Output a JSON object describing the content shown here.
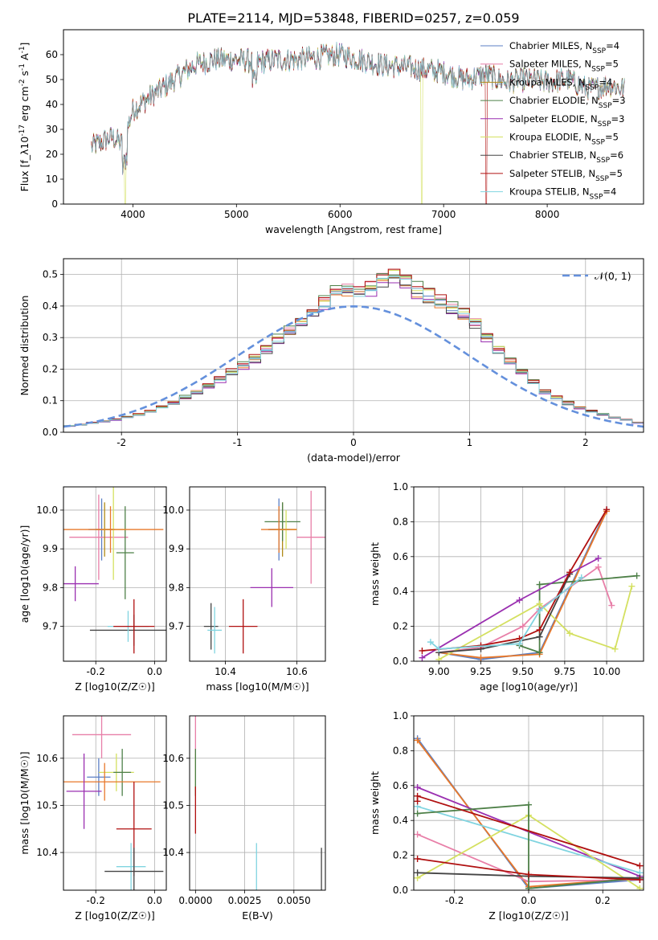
{
  "figure_title": "PLATE=2114, MJD=53848, FIBERID=0257, z=0.059",
  "colors": {
    "Chabrier MILES": "#5b7fc4",
    "Salpeter MILES": "#e87fa8",
    "Kroupa MILES": "#b08a18",
    "Chabrier ELODIE": "#4e8048",
    "Salpeter ELODIE": "#9a2fb0",
    "Kroupa ELODIE": "#d4e060",
    "Chabrier STELIB": "#444444",
    "Salpeter STELIB": "#b01010",
    "Kroupa STELIB": "#80d4e0",
    "ELODIE orange": "#e8782a",
    "gaussian": "#6490dc"
  },
  "chart_data": [
    {
      "id": "spectrum",
      "type": "line",
      "xlabel": "wavelength [Angstrom, rest frame]",
      "ylabel": "Flux [f_λ10^-17 erg cm^-2 s^-1 A^-1]",
      "xlim": [
        3330,
        8930
      ],
      "ylim": [
        0,
        70
      ],
      "xticks": [
        4000,
        5000,
        6000,
        7000,
        8000
      ],
      "yticks": [
        0,
        10,
        20,
        30,
        40,
        50,
        60
      ],
      "grid": false,
      "legend_position": "top-right",
      "legend": [
        "Chabrier MILES, N_SSP=4",
        "Salpeter MILES, N_SSP=5",
        "Kroupa MILES, N_SSP=4",
        "Chabrier ELODIE, N_SSP=3",
        "Salpeter ELODIE, N_SSP=3",
        "Kroupa ELODIE, N_SSP=5",
        "Chabrier STELIB, N_SSP=6",
        "Salpeter STELIB, N_SSP=5",
        "Kroupa STELIB, N_SSP=4"
      ],
      "continuum": {
        "x": [
          3600,
          3800,
          3900,
          4000,
          4200,
          4400,
          4600,
          4800,
          5000,
          5200,
          5400,
          5600,
          5800,
          6000,
          6200,
          6400,
          6600,
          6800,
          7000,
          7200,
          7400,
          7600,
          7800,
          8000,
          8200,
          8400,
          8600,
          8750
        ],
        "y": [
          23,
          27,
          24,
          38,
          44,
          50,
          56,
          58,
          58,
          57,
          58,
          58,
          59,
          60,
          58,
          56,
          55,
          54,
          53,
          50,
          52,
          49,
          50,
          49,
          50,
          46,
          48,
          46
        ]
      },
      "dropouts": [
        {
          "x": 3925,
          "y": 0,
          "series": "Kroupa ELODIE"
        },
        {
          "x": 6790,
          "y": 0,
          "series": "Kroupa ELODIE"
        },
        {
          "x": 7410,
          "y": 0,
          "series": "Salpeter STELIB"
        }
      ]
    },
    {
      "id": "residuals",
      "type": "bar",
      "xlabel": "(data-model)/error",
      "ylabel": "Normed distribution",
      "xlim": [
        -2.5,
        2.5
      ],
      "ylim": [
        0,
        0.55
      ],
      "xticks": [
        -2,
        -1,
        0,
        1,
        2
      ],
      "yticks": [
        0.0,
        0.1,
        0.2,
        0.3,
        0.4,
        0.5
      ],
      "grid": true,
      "legend_position": "top-right",
      "legend": [
        "𝒩(0, 1)"
      ],
      "bin_width": 0.1,
      "gaussian": {
        "mean": 0,
        "sigma": 1
      },
      "base_profile": [
        0.02,
        0.024,
        0.03,
        0.034,
        0.04,
        0.048,
        0.056,
        0.066,
        0.08,
        0.094,
        0.11,
        0.126,
        0.146,
        0.168,
        0.19,
        0.212,
        0.232,
        0.262,
        0.292,
        0.322,
        0.352,
        0.382,
        0.412,
        0.442,
        0.452,
        0.442,
        0.452,
        0.478,
        0.492,
        0.476,
        0.448,
        0.432,
        0.412,
        0.392,
        0.372,
        0.342,
        0.302,
        0.262,
        0.222,
        0.192,
        0.158,
        0.128,
        0.11,
        0.092,
        0.078,
        0.066,
        0.056,
        0.046,
        0.04,
        0.03
      ],
      "series_offsets": [
        0.0,
        0.012,
        -0.008,
        0.02,
        -0.018,
        0.008,
        -0.012,
        0.016,
        -0.004
      ]
    },
    {
      "id": "age_vs_Z",
      "type": "scatter",
      "xlabel": "Z [log10(Z/Z☉)]",
      "ylabel": "age  [log10(age/yr)]",
      "xlim": [
        -0.31,
        0.04
      ],
      "ylim": [
        9.61,
        10.06
      ],
      "xticks": [
        -0.2,
        0.0
      ],
      "yticks": [
        9.7,
        9.8,
        9.9,
        10.0
      ],
      "grid": true,
      "points": [
        {
          "series": "Chabrier MILES",
          "x": -0.18,
          "y": 9.95,
          "xerr": 0.045,
          "yerr": 0.08
        },
        {
          "series": "Salpeter MILES",
          "x": -0.19,
          "y": 9.93,
          "xerr": 0.1,
          "yerr": 0.11
        },
        {
          "series": "Kroupa MILES",
          "x": -0.17,
          "y": 9.95,
          "xerr": 0.03,
          "yerr": 0.07
        },
        {
          "series": "Chabrier ELODIE",
          "x": -0.1,
          "y": 9.89,
          "xerr": 0.03,
          "yerr": 0.12
        },
        {
          "series": "Salpeter ELODIE",
          "x": -0.27,
          "y": 9.81,
          "xerr": 0.08,
          "yerr": 0.045
        },
        {
          "series": "Kroupa ELODIE",
          "x": -0.14,
          "y": 9.95,
          "xerr": 0.04,
          "yerr": 0.13
        },
        {
          "series": "ELODIE orange",
          "x": -0.15,
          "y": 9.95,
          "xerr": 0.18,
          "yerr": 0.06
        },
        {
          "series": "Chabrier STELIB",
          "x": -0.07,
          "y": 9.69,
          "xerr": 0.15,
          "yerr": 0.04
        },
        {
          "series": "Kroupa STELIB",
          "x": -0.09,
          "y": 9.7,
          "xerr": 0.07,
          "yerr": 0.04
        },
        {
          "series": "Salpeter STELIB",
          "x": -0.07,
          "y": 9.7,
          "xerr": 0.07,
          "yerr": 0.07
        }
      ]
    },
    {
      "id": "age_vs_mass",
      "type": "scatter",
      "xlabel": "mass [log10(M/M☉)]",
      "ylabel": "",
      "xlim": [
        10.3,
        10.68
      ],
      "ylim": [
        9.61,
        10.06
      ],
      "xticks": [
        10.4,
        10.6
      ],
      "yticks": [
        9.7,
        9.8,
        9.9,
        10.0
      ],
      "grid": true,
      "points": [
        {
          "series": "Chabrier MILES",
          "x": 10.55,
          "y": 9.95,
          "xerr": 0.03,
          "yerr": 0.08
        },
        {
          "series": "Salpeter MILES",
          "x": 10.64,
          "y": 9.93,
          "xerr": 0.04,
          "yerr": 0.12
        },
        {
          "series": "Kroupa MILES",
          "x": 10.56,
          "y": 9.95,
          "xerr": 0.04,
          "yerr": 0.07
        },
        {
          "series": "Chabrier ELODIE",
          "x": 10.56,
          "y": 9.97,
          "xerr": 0.05,
          "yerr": 0.05
        },
        {
          "series": "Salpeter ELODIE",
          "x": 10.53,
          "y": 9.8,
          "xerr": 0.06,
          "yerr": 0.05
        },
        {
          "series": "Kroupa ELODIE",
          "x": 10.57,
          "y": 9.95,
          "xerr": 0.03,
          "yerr": 0.05
        },
        {
          "series": "ELODIE orange",
          "x": 10.55,
          "y": 9.95,
          "xerr": 0.05,
          "yerr": 0.06
        },
        {
          "series": "Chabrier STELIB",
          "x": 10.36,
          "y": 9.7,
          "xerr": 0.02,
          "yerr": 0.06
        },
        {
          "series": "Kroupa STELIB",
          "x": 10.37,
          "y": 9.69,
          "xerr": 0.02,
          "yerr": 0.06
        },
        {
          "series": "Salpeter STELIB",
          "x": 10.45,
          "y": 9.7,
          "xerr": 0.04,
          "yerr": 0.07
        }
      ]
    },
    {
      "id": "weight_vs_age",
      "type": "line",
      "xlabel": "age  [log10(age/yr)]",
      "ylabel": "mass weight",
      "xlim": [
        8.85,
        10.22
      ],
      "ylim": [
        0.0,
        1.0
      ],
      "xticks": [
        9.0,
        9.25,
        9.5,
        9.75,
        10.0
      ],
      "yticks": [
        0.0,
        0.2,
        0.4,
        0.6,
        0.8,
        1.0
      ],
      "grid": true,
      "series": [
        {
          "name": "Chabrier MILES",
          "x": [
            9.0,
            9.25,
            9.6,
            10.0
          ],
          "y": [
            0.05,
            0.01,
            0.05,
            0.87
          ]
        },
        {
          "name": "Salpeter MILES",
          "x": [
            9.0,
            9.25,
            9.5,
            9.6,
            9.95,
            10.03
          ],
          "y": [
            0.05,
            0.08,
            0.2,
            0.3,
            0.54,
            0.32
          ]
        },
        {
          "name": "ELODIE orange",
          "x": [
            9.0,
            9.25,
            9.6,
            10.0
          ],
          "y": [
            0.05,
            0.02,
            0.04,
            0.86
          ]
        },
        {
          "name": "Chabrier ELODIE",
          "x": [
            9.48,
            9.6,
            9.6,
            10.18
          ],
          "y": [
            0.09,
            0.05,
            0.44,
            0.49
          ]
        },
        {
          "name": "Salpeter ELODIE",
          "x": [
            8.9,
            9.48,
            9.95
          ],
          "y": [
            0.02,
            0.35,
            0.59
          ]
        },
        {
          "name": "Kroupa ELODIE",
          "x": [
            9.0,
            9.6,
            9.78,
            10.05,
            10.15
          ],
          "y": [
            0.01,
            0.33,
            0.16,
            0.07,
            0.43
          ]
        },
        {
          "name": "Chabrier STELIB",
          "x": [
            9.0,
            9.25,
            9.6,
            9.78
          ],
          "y": [
            0.05,
            0.07,
            0.14,
            0.5
          ]
        },
        {
          "name": "Salpeter STELIB",
          "x": [
            8.9,
            9.25,
            9.48,
            9.6,
            9.78,
            10.0
          ],
          "y": [
            0.06,
            0.09,
            0.13,
            0.18,
            0.51,
            0.87
          ]
        },
        {
          "name": "Kroupa STELIB",
          "x": [
            8.95,
            9.0,
            9.48,
            9.6,
            9.85
          ],
          "y": [
            0.11,
            0.07,
            0.1,
            0.29,
            0.48
          ]
        }
      ]
    },
    {
      "id": "mass_vs_Z",
      "type": "scatter",
      "xlabel": "Z [log10(Z/Z☉)]",
      "ylabel": "mass [log10(M/M☉)]",
      "xlim": [
        -0.31,
        0.04
      ],
      "ylim": [
        10.32,
        10.69
      ],
      "xticks": [
        -0.2,
        0.0
      ],
      "yticks": [
        10.4,
        10.5,
        10.6
      ],
      "grid": true,
      "points": [
        {
          "series": "Salpeter MILES",
          "x": -0.18,
          "y": 10.65,
          "xerr": 0.1,
          "yerr": 0.05
        },
        {
          "series": "Chabrier MILES",
          "x": -0.19,
          "y": 10.56,
          "xerr": 0.04,
          "yerr": 0.04
        },
        {
          "series": "Kroupa ELODIE",
          "x": -0.13,
          "y": 10.57,
          "xerr": 0.06,
          "yerr": 0.04
        },
        {
          "series": "Chabrier ELODIE",
          "x": -0.11,
          "y": 10.57,
          "xerr": 0.03,
          "yerr": 0.05
        },
        {
          "series": "ELODIE orange",
          "x": -0.17,
          "y": 10.55,
          "xerr": 0.19,
          "yerr": 0.04
        },
        {
          "series": "Salpeter ELODIE",
          "x": -0.24,
          "y": 10.53,
          "xerr": 0.06,
          "yerr": 0.08
        },
        {
          "series": "Salpeter STELIB",
          "x": -0.07,
          "y": 10.45,
          "xerr": 0.06,
          "yerr": 0.1
        },
        {
          "series": "Kroupa STELIB",
          "x": -0.08,
          "y": 10.37,
          "xerr": 0.05,
          "yerr": 0.05
        },
        {
          "series": "Chabrier STELIB",
          "x": -0.07,
          "y": 10.36,
          "xerr": 0.1,
          "yerr": 0.05
        }
      ]
    },
    {
      "id": "mass_vs_EBV",
      "type": "scatter",
      "xlabel": "E(B-V)",
      "ylabel": "",
      "xlim": [
        -0.0003,
        0.0066
      ],
      "ylim": [
        10.32,
        10.69
      ],
      "xticks": [
        0.0,
        0.0025,
        0.005
      ],
      "xtick_labels": [
        "0.0000",
        "0.0025",
        "0.0050"
      ],
      "yticks": [
        10.4,
        10.5,
        10.6
      ],
      "grid": true,
      "points": [
        {
          "series": "Salpeter MILES",
          "x": 0.0,
          "y": 10.65,
          "xerr": 0.0,
          "yerr": 0.05
        },
        {
          "series": "Kroupa ELODIE",
          "x": 0.0,
          "y": 10.57,
          "xerr": 0.0,
          "yerr": 0.04
        },
        {
          "series": "Chabrier ELODIE",
          "x": 0.0,
          "y": 10.57,
          "xerr": 0.0,
          "yerr": 0.05
        },
        {
          "series": "Salpeter STELIB",
          "x": 0.0,
          "y": 10.49,
          "xerr": 0.0,
          "yerr": 0.05
        },
        {
          "series": "Kroupa STELIB",
          "x": 0.0031,
          "y": 10.37,
          "xerr": 0.0,
          "yerr": 0.05
        },
        {
          "series": "Chabrier STELIB",
          "x": 0.0064,
          "y": 10.35,
          "xerr": 0.0,
          "yerr": 0.06
        }
      ]
    },
    {
      "id": "weight_vs_Z",
      "type": "line",
      "xlabel": "Z [log10(Z/Z☉)]",
      "ylabel": "mass weight",
      "xlim": [
        -0.31,
        0.31
      ],
      "ylim": [
        0.0,
        1.0
      ],
      "xticks": [
        -0.2,
        0.0,
        0.2
      ],
      "yticks": [
        0.0,
        0.2,
        0.4,
        0.6,
        0.8,
        1.0
      ],
      "grid": true,
      "series": [
        {
          "name": "Chabrier MILES",
          "x": [
            -0.3,
            0.0,
            0.3
          ],
          "y": [
            0.87,
            0.01,
            0.06
          ]
        },
        {
          "name": "ELODIE orange",
          "x": [
            -0.3,
            0.0,
            0.3
          ],
          "y": [
            0.86,
            0.02,
            0.07
          ]
        },
        {
          "name": "Salpeter ELODIE",
          "x": [
            -0.3,
            0.3
          ],
          "y": [
            0.59,
            0.08
          ]
        },
        {
          "name": "Salpeter MILES",
          "x": [
            -0.3,
            0.0,
            0.3
          ],
          "y": [
            0.32,
            0.05,
            0.06
          ]
        },
        {
          "name": "Kroupa STELIB",
          "x": [
            -0.3,
            0.3
          ],
          "y": [
            0.48,
            0.1
          ]
        },
        {
          "name": "Kroupa ELODIE",
          "x": [
            -0.3,
            0.0,
            0.3
          ],
          "y": [
            0.07,
            0.43,
            0.01
          ]
        },
        {
          "name": "Chabrier ELODIE",
          "x": [
            -0.3,
            0.0,
            0.0,
            0.3
          ],
          "y": [
            0.44,
            0.49,
            0.01,
            0.07
          ]
        },
        {
          "name": "Chabrier STELIB",
          "x": [
            -0.3,
            0.0,
            0.3
          ],
          "y": [
            0.1,
            0.08,
            0.07
          ]
        },
        {
          "name": "Salpeter STELIB",
          "x": [
            -0.3,
            0.0,
            0.3
          ],
          "y": [
            0.18,
            0.09,
            0.06
          ]
        },
        {
          "name": "Salpeter STELIB high",
          "x": [
            -0.3,
            -0.3,
            0.3
          ],
          "y": [
            0.51,
            0.54,
            0.14
          ]
        }
      ]
    }
  ]
}
